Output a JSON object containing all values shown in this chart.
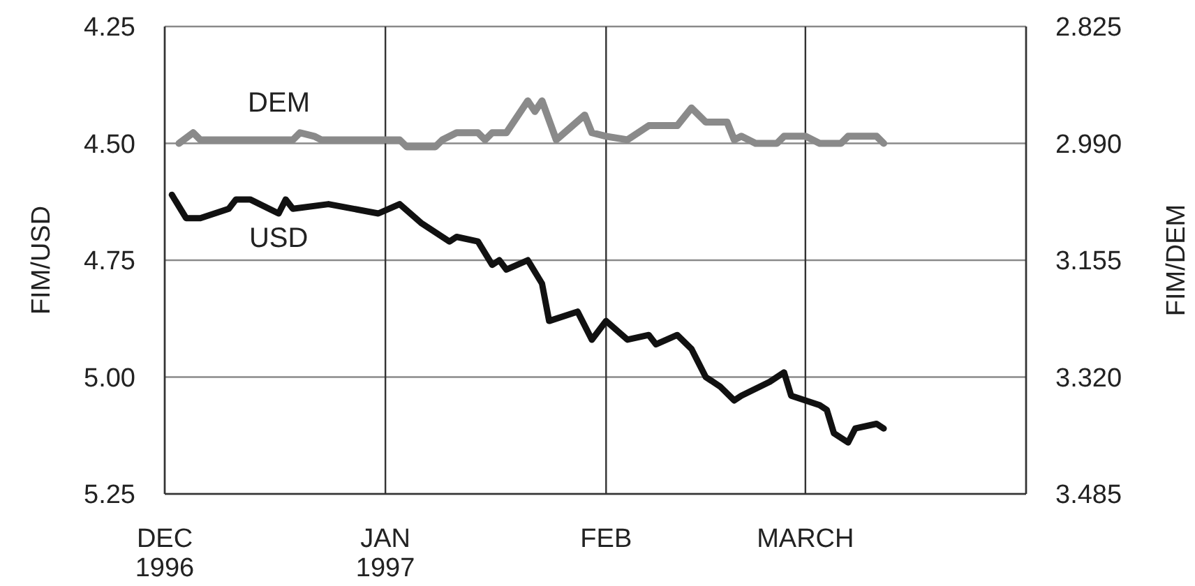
{
  "chart_data": {
    "type": "line",
    "ylabel": "FIM/USD",
    "y2label": "FIM/DEM",
    "xlim": [
      "1996-12-01",
      "1997-04-01"
    ],
    "xticks": [
      {
        "value": "1996-12-01",
        "label": "DEC 1996"
      },
      {
        "value": "1997-01-01",
        "label": "JAN 1997"
      },
      {
        "value": "1997-02-01",
        "label": "FEB"
      },
      {
        "value": "1997-03-01",
        "label": "MARCH"
      }
    ],
    "ylim": [
      5.25,
      4.25
    ],
    "yticks": [
      4.25,
      {
        "value": 4.5,
        "label": "4.50"
      },
      4.75,
      {
        "value": 5,
        "label": "5.00"
      },
      5.25
    ],
    "y2lim": [
      3.485,
      2.825
    ],
    "y2ticks": [
      2.825,
      {
        "value": 2.99,
        "label": "2.990"
      },
      3.155,
      {
        "value": 3.32,
        "label": "3.320"
      },
      3.485
    ],
    "grid": true,
    "series": [
      {
        "name": "USD",
        "color": "#111111",
        "x": [
          "1996-12-02",
          "1996-12-04",
          "1996-12-06",
          "1996-12-10",
          "1996-12-11",
          "1996-12-13",
          "1996-12-17",
          "1996-12-18",
          "1996-12-19",
          "1996-12-24",
          "1996-12-31",
          "1997-01-03",
          "1997-01-06",
          "1997-01-10",
          "1997-01-11",
          "1997-01-14",
          "1997-01-16",
          "1997-01-17",
          "1997-01-18",
          "1997-01-21",
          "1997-01-23",
          "1997-01-24",
          "1997-01-28",
          "1997-01-30",
          "1997-02-01",
          "1997-02-04",
          "1997-02-07",
          "1997-02-08",
          "1997-02-11",
          "1997-02-13",
          "1997-02-15",
          "1997-02-17",
          "1997-02-19",
          "1997-02-20",
          "1997-02-24",
          "1997-02-26",
          "1997-02-27",
          "1997-03-03",
          "1997-03-04",
          "1997-03-05",
          "1997-03-07",
          "1997-03-08",
          "1997-03-11",
          "1997-03-12"
        ],
        "values": [
          4.61,
          4.66,
          4.66,
          4.64,
          4.62,
          4.62,
          4.65,
          4.62,
          4.64,
          4.63,
          4.65,
          4.63,
          4.67,
          4.71,
          4.7,
          4.71,
          4.76,
          4.75,
          4.77,
          4.75,
          4.8,
          4.88,
          4.86,
          4.92,
          4.88,
          4.92,
          4.91,
          4.93,
          4.91,
          4.94,
          5.0,
          5.02,
          5.05,
          5.04,
          5.01,
          4.99,
          5.04,
          5.06,
          5.07,
          5.12,
          5.14,
          5.11,
          5.1,
          5.11
        ]
      },
      {
        "name": "DEM",
        "color": "#8a8a8a",
        "axis": "y2",
        "x": [
          "1996-12-03",
          "1996-12-05",
          "1996-12-06",
          "1996-12-19",
          "1996-12-20",
          "1996-12-22",
          "1996-12-23",
          "1997-01-03",
          "1997-01-04",
          "1997-01-08",
          "1997-01-09",
          "1997-01-11",
          "1997-01-14",
          "1997-01-15",
          "1997-01-16",
          "1997-01-18",
          "1997-01-21",
          "1997-01-22",
          "1997-01-23",
          "1997-01-25",
          "1997-01-29",
          "1997-01-30",
          "1997-02-01",
          "1997-02-04",
          "1997-02-07",
          "1997-02-11",
          "1997-02-13",
          "1997-02-15",
          "1997-02-18",
          "1997-02-19",
          "1997-02-20",
          "1997-02-22",
          "1997-02-25",
          "1997-02-26",
          "1997-03-01",
          "1997-03-03",
          "1997-03-06",
          "1997-03-07",
          "1997-03-11",
          "1997-03-12"
        ],
        "values": [
          2.99,
          2.975,
          2.985,
          2.985,
          2.975,
          2.98,
          2.985,
          2.985,
          2.995,
          2.995,
          2.985,
          2.975,
          2.975,
          2.985,
          2.975,
          2.975,
          2.93,
          2.945,
          2.93,
          2.985,
          2.95,
          2.975,
          2.98,
          2.985,
          2.965,
          2.965,
          2.94,
          2.96,
          2.96,
          2.985,
          2.98,
          2.99,
          2.99,
          2.98,
          2.98,
          2.99,
          2.99,
          2.98,
          2.98,
          2.99
        ]
      }
    ]
  }
}
